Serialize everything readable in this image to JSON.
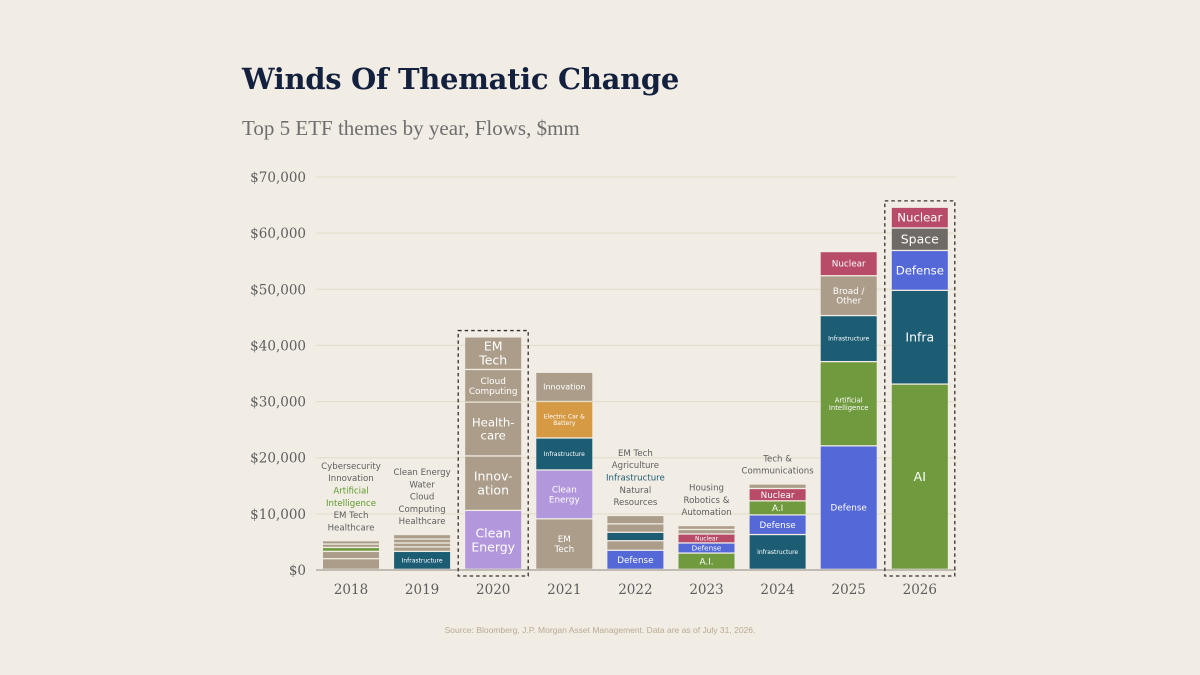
{
  "title": "Winds Of Thematic Change",
  "subtitle": "Top 5 ETF themes by year, Flows, $mm",
  "source": "Source: Bloomberg, J.P. Morgan Asset Management. Data are as of July 31, 2026.",
  "colors": {
    "background": "#f1ece4",
    "gridline": "#e2dcc6",
    "axis_text": "#5e5e5e",
    "other": "#ab9d89",
    "clean_energy": "#b397dc",
    "electric_car": "#d69a45",
    "infrastructure": "#1c5d74",
    "defense": "#5468d8",
    "ai": "#6f9a3e",
    "nuclear": "#b84c68",
    "space": "#6f6a65",
    "label_green": "#5f9a2e",
    "label_teal": "#1c5d74",
    "highlight_border": "#3a2f2c"
  },
  "chart_data": {
    "type": "bar",
    "stacked": true,
    "y_axis": {
      "min": 0,
      "max": 70000,
      "ticks": [
        0,
        10000,
        20000,
        30000,
        40000,
        50000,
        60000,
        70000
      ],
      "tick_labels": [
        "$0",
        "$10,000",
        "$20,000",
        "$30,000",
        "$40,000",
        "$50,000",
        "$60,000",
        "$70,000"
      ]
    },
    "grid": true,
    "categories": [
      "2018",
      "2019",
      "2020",
      "2021",
      "2022",
      "2023",
      "2024",
      "2025",
      "2026"
    ],
    "highlighted": [
      "2020",
      "2026"
    ],
    "bars": [
      {
        "year": "2018",
        "segments": [
          {
            "value": 1900,
            "color": "#ab9d89"
          },
          {
            "value": 1300,
            "color": "#ab9d89"
          },
          {
            "value": 700,
            "color": "#6f9a3e"
          },
          {
            "value": 600,
            "color": "#ab9d89"
          },
          {
            "value": 600,
            "color": "#ab9d89"
          }
        ],
        "side_labels": [
          {
            "text": "Cybersecurity",
            "color": "#5e5e5e"
          },
          {
            "text": "Innovation",
            "color": "#5e5e5e"
          },
          {
            "text": "Artificial",
            "color": "#5f9a2e"
          },
          {
            "text": "Intelligence",
            "color": "#5f9a2e"
          },
          {
            "text": "EM Tech",
            "color": "#5e5e5e"
          },
          {
            "text": "Healthcare",
            "color": "#5e5e5e"
          }
        ]
      },
      {
        "year": "2019",
        "segments": [
          {
            "value": 3200,
            "color": "#1c5d74",
            "label": "Infrastructure"
          },
          {
            "value": 800,
            "color": "#ab9d89"
          },
          {
            "value": 700,
            "color": "#ab9d89"
          },
          {
            "value": 700,
            "color": "#ab9d89"
          },
          {
            "value": 800,
            "color": "#ab9d89"
          }
        ],
        "side_labels": [
          {
            "text": "Clean Energy",
            "color": "#5e5e5e"
          },
          {
            "text": "Water",
            "color": "#5e5e5e"
          },
          {
            "text": "Cloud",
            "color": "#5e5e5e"
          },
          {
            "text": "Computing",
            "color": "#5e5e5e"
          },
          {
            "text": "Healthcare",
            "color": "#5e5e5e"
          }
        ]
      },
      {
        "year": "2020",
        "segments": [
          {
            "value": 10500,
            "color": "#b397dc",
            "label": "Clean Energy"
          },
          {
            "value": 9700,
            "color": "#ab9d89",
            "label": "Innov- ation"
          },
          {
            "value": 9600,
            "color": "#ab9d89",
            "label": "Health- care"
          },
          {
            "value": 5800,
            "color": "#ab9d89",
            "label": "Cloud Computing"
          },
          {
            "value": 5800,
            "color": "#ab9d89",
            "label": "EM Tech"
          }
        ]
      },
      {
        "year": "2021",
        "segments": [
          {
            "value": 9000,
            "color": "#ab9d89",
            "label": "EM Tech"
          },
          {
            "value": 8700,
            "color": "#b397dc",
            "label": "Clean Energy"
          },
          {
            "value": 5700,
            "color": "#1c5d74",
            "label": "Infrastructure"
          },
          {
            "value": 6500,
            "color": "#d69a45",
            "label": "Electric Car & Battery"
          },
          {
            "value": 5200,
            "color": "#ab9d89",
            "label": "Innovation"
          }
        ]
      },
      {
        "year": "2022",
        "segments": [
          {
            "value": 3400,
            "color": "#5468d8",
            "label": "Defense"
          },
          {
            "value": 1700,
            "color": "#ab9d89"
          },
          {
            "value": 1500,
            "color": "#1c5d74"
          },
          {
            "value": 1500,
            "color": "#ab9d89"
          },
          {
            "value": 1500,
            "color": "#ab9d89"
          }
        ],
        "side_labels": [
          {
            "text": "EM Tech",
            "color": "#5e5e5e"
          },
          {
            "text": "Agriculture",
            "color": "#5e5e5e"
          },
          {
            "text": "Infrastructure",
            "color": "#1c5d74"
          },
          {
            "text": "Natural",
            "color": "#5e5e5e"
          },
          {
            "text": "Resources",
            "color": "#5e5e5e"
          }
        ]
      },
      {
        "year": "2023",
        "segments": [
          {
            "value": 2900,
            "color": "#6f9a3e",
            "label": "A.I."
          },
          {
            "value": 1800,
            "color": "#5468d8",
            "label": "Defense"
          },
          {
            "value": 1600,
            "color": "#b84c68",
            "label": "Nuclear"
          },
          {
            "value": 800,
            "color": "#ab9d89"
          },
          {
            "value": 700,
            "color": "#ab9d89"
          }
        ],
        "side_labels": [
          {
            "text": "Housing",
            "color": "#5e5e5e"
          },
          {
            "text": "Robotics &",
            "color": "#5e5e5e"
          },
          {
            "text": "Automation",
            "color": "#5e5e5e"
          }
        ]
      },
      {
        "year": "2024",
        "segments": [
          {
            "value": 6200,
            "color": "#1c5d74",
            "label": "Infrastructure"
          },
          {
            "value": 3500,
            "color": "#5468d8",
            "label": "Defense"
          },
          {
            "value": 2500,
            "color": "#6f9a3e",
            "label": "A.I"
          },
          {
            "value": 2200,
            "color": "#b84c68",
            "label": "Nuclear"
          },
          {
            "value": 800,
            "color": "#ab9d89"
          }
        ],
        "side_labels": [
          {
            "text": "Tech &",
            "color": "#5e5e5e"
          },
          {
            "text": "Communications",
            "color": "#5e5e5e"
          }
        ]
      },
      {
        "year": "2025",
        "segments": [
          {
            "value": 22000,
            "color": "#5468d8",
            "label": "Defense"
          },
          {
            "value": 15000,
            "color": "#6f9a3e",
            "label": "Artificial Intelligence"
          },
          {
            "value": 8200,
            "color": "#1c5d74",
            "label": "Infrastructure"
          },
          {
            "value": 7100,
            "color": "#ab9d89",
            "label": "Broad / Other"
          },
          {
            "value": 4300,
            "color": "#b84c68",
            "label": "Nuclear"
          }
        ]
      },
      {
        "year": "2026",
        "segments": [
          {
            "value": 33000,
            "color": "#6f9a3e",
            "label": "AI"
          },
          {
            "value": 16700,
            "color": "#1c5d74",
            "label": "Infra"
          },
          {
            "value": 7100,
            "color": "#5468d8",
            "label": "Defense"
          },
          {
            "value": 4000,
            "color": "#6f6a65",
            "label": "Space"
          },
          {
            "value": 3700,
            "color": "#b84c68",
            "label": "Nuclear"
          }
        ]
      }
    ]
  }
}
